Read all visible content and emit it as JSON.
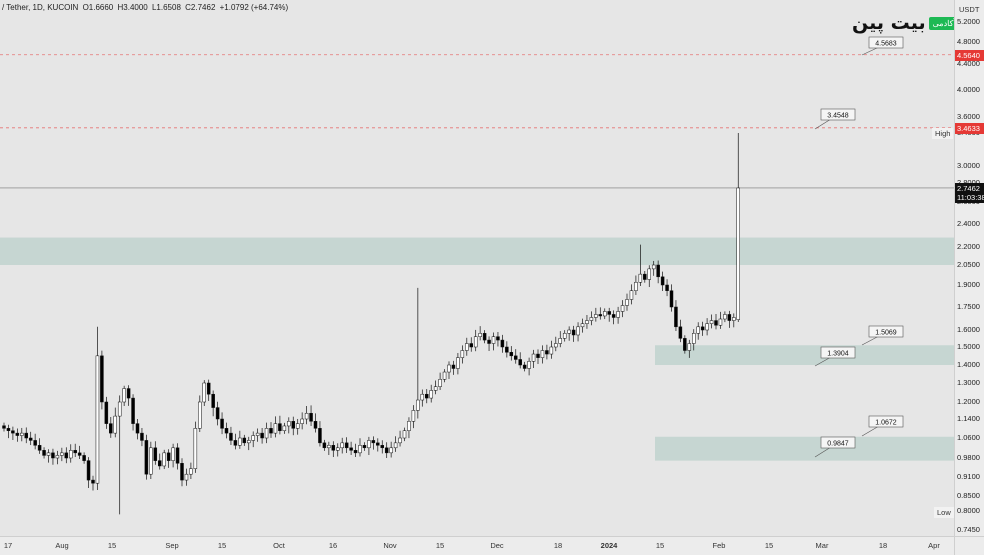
{
  "header": {
    "symbol": "/ Tether, 1D, KUCOIN",
    "open": "O1.6660",
    "high": "H3.4000",
    "low": "L1.6508",
    "close": "C2.7462",
    "change": "+1.0792 (+64.74%)"
  },
  "logo": {
    "text": "بیت پین",
    "badge": "آکادمی"
  },
  "y_axis": {
    "unit": "USDT",
    "ticks": [
      "5.2000",
      "4.8000",
      "4.4000",
      "4.0000",
      "3.6000",
      "3.4000",
      "3.0000",
      "2.8000",
      "2.6000",
      "2.4000",
      "2.2000",
      "2.0500",
      "1.9000",
      "1.7500",
      "1.6000",
      "1.5000",
      "1.4000",
      "1.3000",
      "1.2000",
      "1.1400",
      "1.0600",
      "0.9800",
      "0.9100",
      "0.8500",
      "0.8000",
      "0.7450"
    ],
    "price_tags": {
      "line_4564": "4.5640",
      "line_3463": "3.4633",
      "current": "2.7462",
      "countdown": "11:03:38"
    },
    "high_label": "High",
    "low_label": "Low",
    "low_value": "0.8000",
    "high_value": "3.4000"
  },
  "x_axis": {
    "ticks": [
      {
        "label": "17"
      },
      {
        "label": "Aug"
      },
      {
        "label": "15"
      },
      {
        "label": "Sep"
      },
      {
        "label": "15"
      },
      {
        "label": "Oct"
      },
      {
        "label": "16"
      },
      {
        "label": "Nov"
      },
      {
        "label": "15"
      },
      {
        "label": "Dec"
      },
      {
        "label": "18"
      },
      {
        "label": "2024",
        "bold": true
      },
      {
        "label": "15"
      },
      {
        "label": "Feb"
      },
      {
        "label": "15"
      },
      {
        "label": "Mar"
      },
      {
        "label": "18"
      },
      {
        "label": "Apr"
      }
    ]
  },
  "annotations": [
    "4.5683",
    "3.4548",
    "1.5069",
    "1.3904",
    "1.0672",
    "0.9847"
  ],
  "colors": {
    "zone": "#c6d6d2",
    "up": "#ffffff",
    "down": "#000000",
    "dash": "#e57373",
    "tag_red": "#e53935",
    "tag_black": "#111111"
  },
  "chart_data": {
    "type": "candlestick",
    "symbol": "/ Tether",
    "timeframe": "1D",
    "exchange": "KUCOIN",
    "y_range": [
      0.745,
      5.2
    ],
    "y_scale": "log",
    "horizontal_levels": [
      4.564,
      3.4633,
      2.7462
    ],
    "zones": [
      [
        2.05,
        2.28
      ],
      [
        1.4,
        1.51
      ],
      [
        0.97,
        1.065
      ]
    ],
    "last_candle": {
      "open": 1.666,
      "high": 3.4,
      "low": 1.6508,
      "close": 2.7462
    }
  }
}
